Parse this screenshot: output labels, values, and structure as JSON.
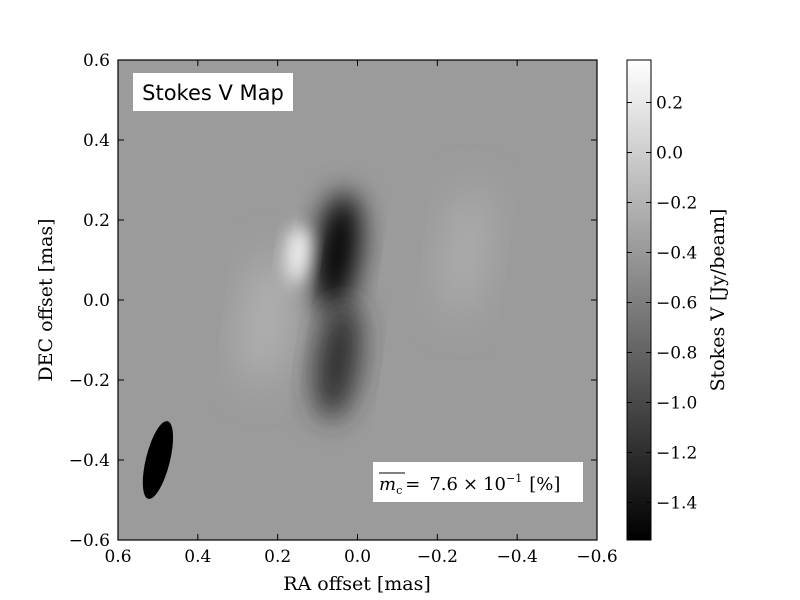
{
  "chart_data": {
    "type": "heatmap",
    "title": "",
    "panel_label": "Stokes V Map",
    "xlabel": "RA offset [mas]",
    "ylabel": "DEC offset [mas]",
    "xlim": [
      0.6,
      -0.6
    ],
    "ylim": [
      -0.6,
      0.6
    ],
    "x_ticks": [
      0.6,
      0.4,
      0.2,
      0.0,
      -0.2,
      -0.4,
      -0.6
    ],
    "x_tick_labels": [
      "0.6",
      "0.4",
      "0.2",
      "0.0",
      "−0.2",
      "−0.4",
      "−0.6"
    ],
    "y_ticks": [
      0.6,
      0.4,
      0.2,
      0.0,
      -0.2,
      -0.4,
      -0.6
    ],
    "y_tick_labels": [
      "0.6",
      "0.4",
      "0.2",
      "0.0",
      "−0.2",
      "−0.4",
      "−0.6"
    ],
    "colormap": "gray",
    "colorbar": {
      "label": "Stokes V [Jy/beam]",
      "range": [
        -1.55,
        0.37
      ],
      "ticks": [
        0.2,
        0.0,
        -0.2,
        -0.4,
        -0.6,
        -0.8,
        -1.0,
        -1.2,
        -1.4
      ],
      "tick_labels": [
        "0.2",
        "0.0",
        "−0.2",
        "−0.4",
        "−0.6",
        "−0.8",
        "−1.0",
        "−1.2",
        "−1.4"
      ]
    },
    "background_value": -0.38,
    "features": [
      {
        "kind": "negative-lobe",
        "x": 0.05,
        "y": 0.12,
        "peak": -1.55
      },
      {
        "kind": "negative-lobe",
        "x": 0.05,
        "y": -0.15,
        "peak": -1.2
      },
      {
        "kind": "positive-lobe",
        "x": 0.15,
        "y": 0.11,
        "peak": 0.37
      },
      {
        "kind": "positive-lobe",
        "x": 0.23,
        "y": -0.05,
        "peak": -0.2
      },
      {
        "kind": "positive-lobe",
        "x": -0.27,
        "y": 0.12,
        "peak": -0.25
      }
    ],
    "beam": {
      "x": 0.5,
      "y": -0.4,
      "major": 0.2,
      "minor": 0.06,
      "pa_deg": 14
    },
    "annotation": {
      "prefix": "m",
      "prefix_sub": "c",
      "equals": "=",
      "mantissa": "7.6",
      "times": "×",
      "base": "10",
      "exponent": "−1",
      "unit": "[%]"
    },
    "grid": false,
    "legend": "none"
  }
}
